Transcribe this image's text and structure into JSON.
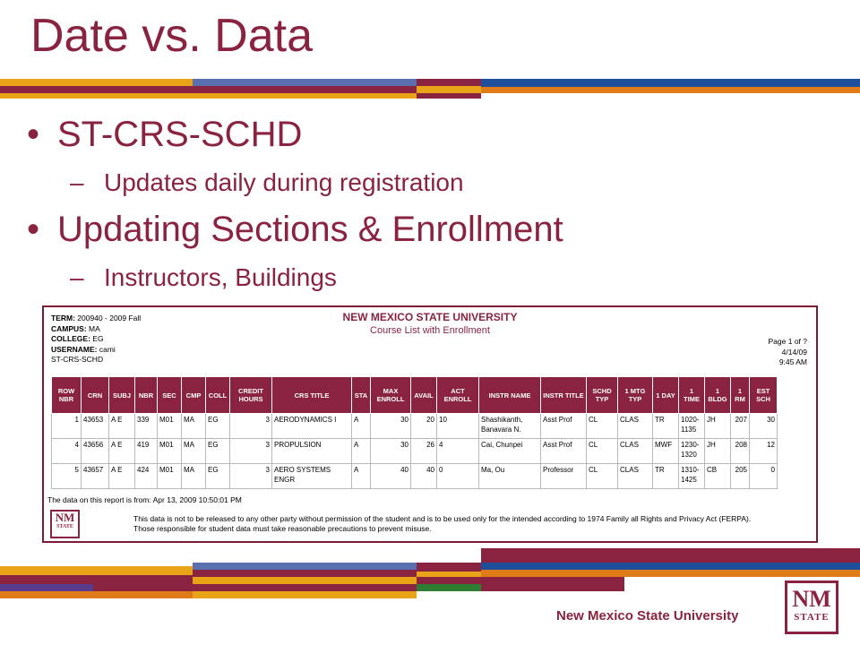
{
  "slide": {
    "title": "Date vs. Data",
    "bullets": [
      {
        "text": "ST-CRS-SCHD",
        "sub": "Updates daily during registration"
      },
      {
        "text": "Updating Sections & Enrollment",
        "sub": "Instructors, Buildings"
      }
    ],
    "bullet_glyph": "•",
    "dash_glyph": "–",
    "footer": "New Mexico State University",
    "logo_text": "NM",
    "logo_sub": "STATE",
    "colors": {
      "crimson": "#8a2340",
      "gold": "#e8a317",
      "blue": "#1f4e9b",
      "orange": "#e07b1a",
      "green": "#2e7d32",
      "purple": "#5a3a8c"
    }
  },
  "report": {
    "term_label": "TERM:",
    "term_value": "200940 - 2009 Fall",
    "campus_label": "CAMPUS:",
    "campus_value": "MA",
    "college_label": "COLLEGE:",
    "college_value": "EG",
    "username_label": "USERNAME:",
    "username_value": "cami",
    "report_id": "ST-CRS-SCHD",
    "title": "NEW MEXICO STATE UNIVERSITY",
    "subtitle": "Course List with Enrollment",
    "page": "Page 1 of ?",
    "date": "4/14/09",
    "time": "9:45 AM",
    "columns": [
      "ROW NBR",
      "CRN",
      "SUBJ",
      "NBR",
      "SEC",
      "CMP",
      "COLL",
      "CREDIT HOURS",
      "CRS TITLE",
      "STA",
      "MAX ENROLL",
      "AVAIL",
      "ACT ENROLL",
      "INSTR NAME",
      "INSTR TITLE",
      "SCHD TYP",
      "1 MTG TYP",
      "1 DAY",
      "1 TIME",
      "1 BLDG",
      "1 RM",
      "EST SCH"
    ],
    "rows": [
      [
        "1",
        "43653",
        "A E",
        "339",
        "M01",
        "MA",
        "EG",
        "3",
        "AERODYNAMICS I",
        "A",
        "30",
        "20",
        "10",
        "Shashikanth, Banavara N.",
        "Asst Prof",
        "CL",
        "CLAS",
        "TR",
        "1020-1135",
        "JH",
        "207",
        "30"
      ],
      [
        "4",
        "43656",
        "A E",
        "419",
        "M01",
        "MA",
        "EG",
        "3",
        "PROPULSION",
        "A",
        "30",
        "26",
        "4",
        "Cai, Chunpei",
        "Asst Prof",
        "CL",
        "CLAS",
        "MWF",
        "1230-1320",
        "JH",
        "208",
        "12"
      ],
      [
        "5",
        "43657",
        "A E",
        "424",
        "M01",
        "MA",
        "EG",
        "3",
        "AERO SYSTEMS ENGR",
        "A",
        "40",
        "40",
        "0",
        "Ma, Ou",
        "Professor",
        "CL",
        "CLAS",
        "TR",
        "1310-1425",
        "CB",
        "205",
        "0"
      ]
    ],
    "data_note": "The data on this report is from: Apr 13, 2009 10:50:01 PM",
    "ferpa": "This data is not to be released to any other party without permission of the student and is to be used only for the intended according to 1974 Family all Rights and Privacy Act (FERPA). Those responsible for student data must take reasonable precautions to prevent misuse."
  }
}
